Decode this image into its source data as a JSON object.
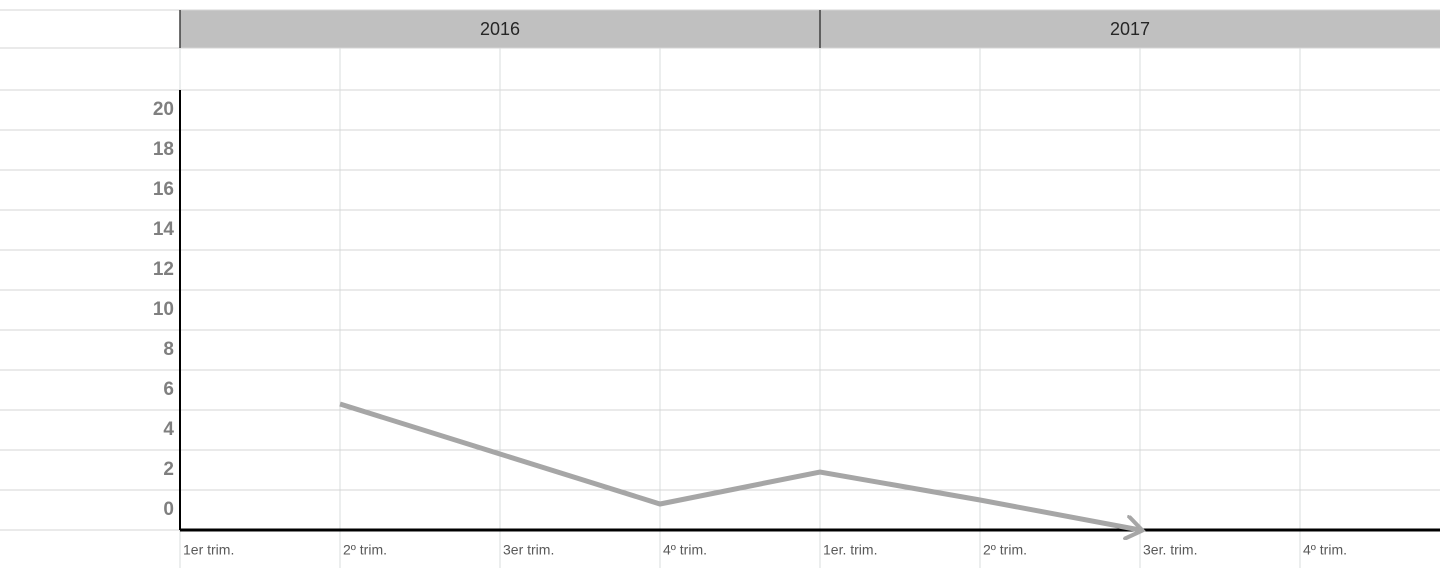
{
  "chart_data": {
    "type": "line",
    "groups": [
      "2016",
      "2017"
    ],
    "categories": [
      "1er trim.",
      "2º trim.",
      "3er trim.",
      "4º trim.",
      "1er. trim.",
      "2º trim.",
      "3er. trim.",
      "4º trim."
    ],
    "series": [
      {
        "color": "#a6a6a6",
        "values": [
          null,
          6.3,
          3.8,
          1.3,
          2.9,
          1.5,
          0,
          null
        ]
      }
    ],
    "ylim": [
      0,
      20
    ],
    "yticks": [
      0,
      2,
      4,
      6,
      8,
      10,
      12,
      14,
      16,
      18,
      20
    ],
    "grid": true
  }
}
